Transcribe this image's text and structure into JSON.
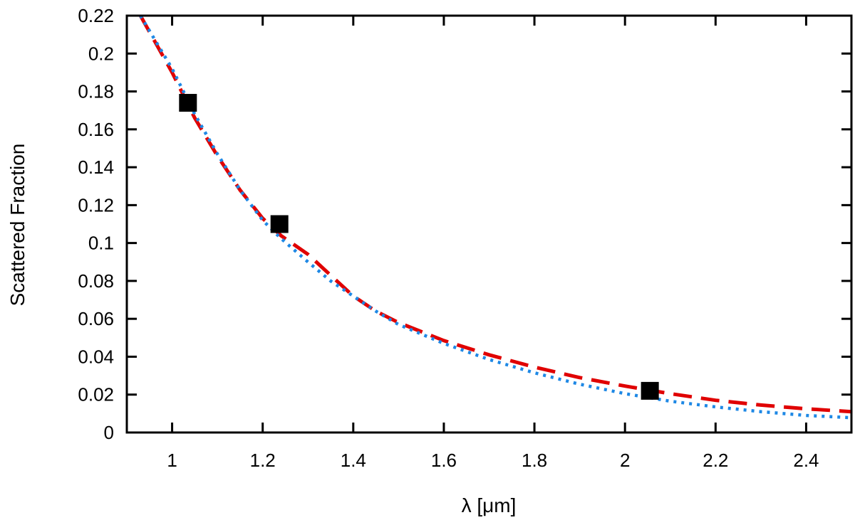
{
  "chart_data": {
    "type": "line",
    "xlabel": "λ [μm]",
    "ylabel": "Scattered Fraction",
    "xlim": [
      0.9,
      2.5
    ],
    "ylim": [
      0,
      0.22
    ],
    "xticks": [
      1,
      1.2,
      1.4,
      1.6,
      1.8,
      2,
      2.2,
      2.4
    ],
    "xtick_labels": [
      "1",
      "1.2",
      "1.4",
      "1.6",
      "1.8",
      "2",
      "2.2",
      "2.4"
    ],
    "yticks": [
      0,
      0.02,
      0.04,
      0.06,
      0.08,
      0.1,
      0.12,
      0.14,
      0.16,
      0.18,
      0.2,
      0.22
    ],
    "ytick_labels": [
      "0",
      "0.02",
      "0.04",
      "0.06",
      "0.08",
      "0.1",
      "0.12",
      "0.14",
      "0.16",
      "0.18",
      "0.2",
      "0.22"
    ],
    "grid": false,
    "legend": "none",
    "series": [
      {
        "style": "dashed",
        "color": "#e00000",
        "x": [
          0.93,
          1.0,
          1.05,
          1.1,
          1.15,
          1.2,
          1.24,
          1.3,
          1.35,
          1.4,
          1.45,
          1.5,
          1.6,
          1.7,
          1.8,
          1.9,
          2.0,
          2.1,
          2.2,
          2.3,
          2.4,
          2.5
        ],
        "y": [
          0.22,
          0.19,
          0.166,
          0.146,
          0.128,
          0.113,
          0.104,
          0.094,
          0.083,
          0.072,
          0.064,
          0.058,
          0.0485,
          0.041,
          0.0345,
          0.029,
          0.0245,
          0.0205,
          0.017,
          0.0145,
          0.0125,
          0.011
        ]
      },
      {
        "style": "dotted",
        "color": "#1e88e5",
        "x": [
          0.93,
          1.0,
          1.05,
          1.1,
          1.15,
          1.2,
          1.24,
          1.3,
          1.35,
          1.4,
          1.45,
          1.5,
          1.6,
          1.7,
          1.8,
          1.9,
          2.0,
          2.1,
          2.2,
          2.3,
          2.4,
          2.5
        ],
        "y": [
          0.22,
          0.192,
          0.168,
          0.147,
          0.128,
          0.112,
          0.1025,
          0.09,
          0.08,
          0.072,
          0.064,
          0.057,
          0.047,
          0.0385,
          0.0315,
          0.0255,
          0.0205,
          0.0165,
          0.0135,
          0.011,
          0.009,
          0.0078
        ]
      },
      {
        "style": "markers",
        "marker": "square",
        "color": "#000000",
        "x": [
          1.035,
          1.237,
          2.055
        ],
        "y": [
          0.174,
          0.11,
          0.022
        ]
      }
    ]
  }
}
